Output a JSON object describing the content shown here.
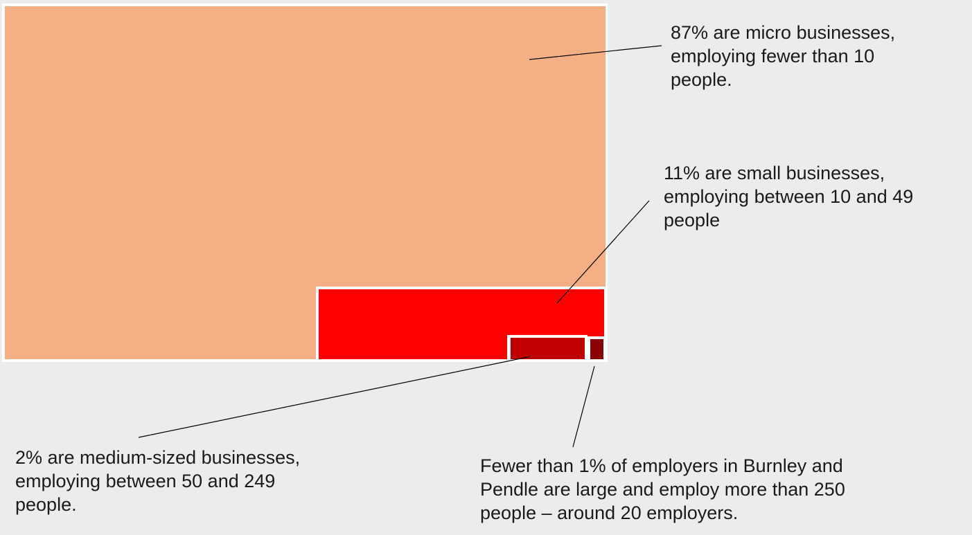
{
  "chart_data": {
    "type": "treemap",
    "title": "",
    "segments": [
      {
        "key": "micro",
        "value": 87,
        "color": "#f4b084",
        "label_lines": [
          "87% are micro businesses,",
          "employing fewer than 10",
          "people."
        ]
      },
      {
        "key": "small",
        "value": 11,
        "color": "#ff0000",
        "label_lines": [
          "11% are small businesses,",
          "employing between 10 and 49",
          "people"
        ]
      },
      {
        "key": "medium",
        "value": 2,
        "color": "#c00000",
        "label_lines": [
          "2% are medium-sized businesses,",
          "employing between 50 and 249",
          "people."
        ]
      },
      {
        "key": "large",
        "value": "<1",
        "color": "#8b0000",
        "label_lines": [
          "Fewer than 1% of employers in Burnley and",
          "Pendle are large and employ more than 250",
          "people – around 20 employers."
        ]
      }
    ],
    "background_color": "#ececec",
    "border_color": "#ffffff",
    "leader_line_color": "#000000"
  }
}
